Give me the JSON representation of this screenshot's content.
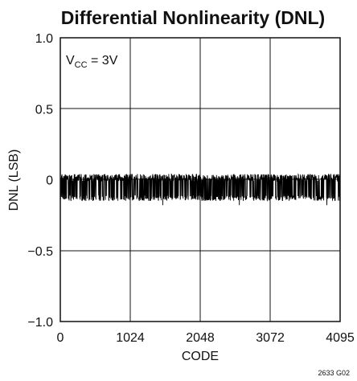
{
  "chart_data": {
    "type": "line",
    "title": "Differential Nonlinearity (DNL)",
    "xlabel": "CODE",
    "ylabel": "DNL (LSB)",
    "xlim": [
      0,
      4095
    ],
    "ylim": [
      -1.0,
      1.0
    ],
    "x_ticks": [
      {
        "value": 0,
        "label": "0"
      },
      {
        "value": 1024,
        "label": "1024"
      },
      {
        "value": 2048,
        "label": "2048"
      },
      {
        "value": 3072,
        "label": "3072"
      },
      {
        "value": 4095,
        "label": "4095"
      }
    ],
    "y_ticks": [
      {
        "value": 1.0,
        "label": "1.0"
      },
      {
        "value": 0.5,
        "label": "0.5"
      },
      {
        "value": 0,
        "label": "0"
      },
      {
        "value": -0.5,
        "label": "−0.5"
      },
      {
        "value": -1.0,
        "label": "−1.0"
      }
    ],
    "grid": true,
    "annotation": {
      "prefix": "V",
      "subscript": "CC",
      "suffix": " = 3V"
    },
    "figure_id": "2633 G02",
    "series": [
      {
        "upper_envelope_lsb": 0.04,
        "lower_envelope_lsb": -0.13,
        "min_spike_lsb": -0.18,
        "color": "#000000"
      }
    ]
  }
}
